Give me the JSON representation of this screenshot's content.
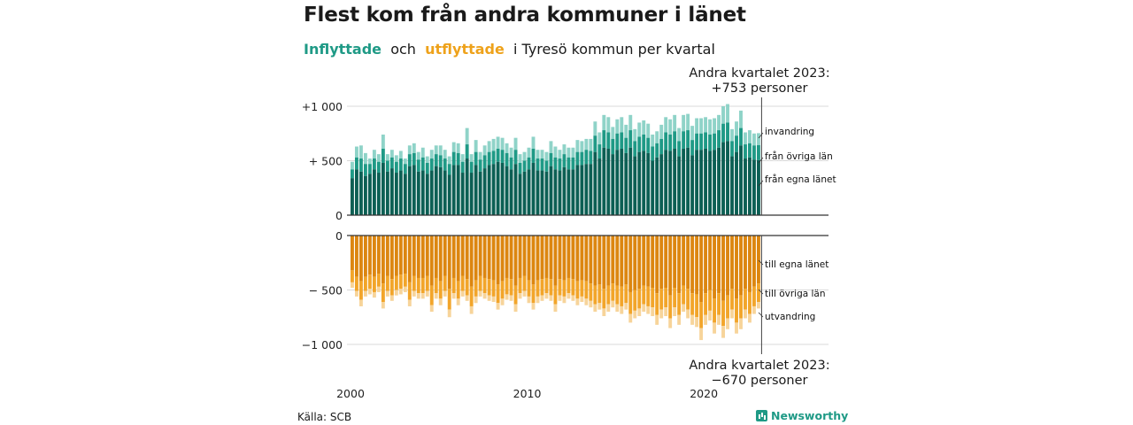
{
  "title": "Flest kom från andra kommuner i länet",
  "subtitle": {
    "inflyttade": "Inflyttade",
    "och": "och",
    "utflyttade": "utflyttade",
    "rest": "i Tyresö kommun per kvartal"
  },
  "callouts": {
    "top": [
      "Andra kvartalet 2023:",
      "+753 personer"
    ],
    "bottom": [
      "Andra kvartalet 2023:",
      "−670 personer"
    ]
  },
  "source": "Källa: SCB",
  "brand": "Newsworthy",
  "colors": {
    "in_county": "#0c5f54",
    "in_other": "#1f9a86",
    "in_immig": "#8fd3c8",
    "out_county": "#dc8610",
    "out_other": "#f2a52a",
    "out_emig": "#f7d49a",
    "grid": "#d9d9d9",
    "axis": "#333333",
    "inflyttade_text": "#1f9a86",
    "utflyttade_text": "#eea21b"
  },
  "chart_data": {
    "type": "bar",
    "stacked": true,
    "quarters_start": "2000 Q1",
    "quarters_end": "2023 Q2",
    "x_tick_labels": [
      "2000",
      "2010",
      "2020"
    ],
    "y_tick_labels_top": [
      "+1 000",
      "+ 500",
      "0"
    ],
    "y_tick_labels_bottom": [
      "0",
      "− 500",
      "−1 000"
    ],
    "ylim_top": [
      0,
      1000
    ],
    "ylim_bottom": [
      -1000,
      0
    ],
    "grid": true,
    "inflow_series_labels": [
      "invandring",
      "från övriga län",
      "från egna länet"
    ],
    "outflow_series_labels": [
      "till egna länet",
      "till övriga län",
      "utvandring"
    ],
    "inflow_total": [
      490,
      630,
      640,
      570,
      520,
      600,
      560,
      740,
      560,
      600,
      550,
      590,
      520,
      640,
      660,
      580,
      620,
      540,
      600,
      640,
      640,
      600,
      540,
      670,
      660,
      560,
      800,
      560,
      690,
      580,
      640,
      680,
      700,
      720,
      710,
      660,
      620,
      710,
      560,
      580,
      620,
      720,
      600,
      600,
      580,
      680,
      630,
      600,
      650,
      620,
      620,
      690,
      680,
      700,
      700,
      860,
      760,
      920,
      900,
      810,
      880,
      900,
      830,
      920,
      790,
      850,
      870,
      840,
      740,
      770,
      830,
      900,
      880,
      920,
      800,
      920,
      930,
      820,
      890,
      890,
      900,
      880,
      890,
      920,
      1000,
      1020,
      790,
      860,
      960,
      760,
      780,
      750,
      753
    ],
    "inflow_county": [
      340,
      420,
      400,
      360,
      380,
      420,
      390,
      480,
      400,
      430,
      390,
      410,
      380,
      450,
      460,
      400,
      410,
      380,
      410,
      450,
      440,
      410,
      370,
      460,
      460,
      390,
      520,
      390,
      460,
      400,
      430,
      460,
      470,
      490,
      480,
      450,
      420,
      470,
      380,
      400,
      420,
      480,
      410,
      410,
      400,
      450,
      420,
      410,
      440,
      420,
      420,
      460,
      460,
      470,
      470,
      580,
      520,
      620,
      610,
      560,
      600,
      610,
      570,
      620,
      540,
      580,
      590,
      570,
      500,
      530,
      560,
      600,
      590,
      610,
      540,
      610,
      620,
      550,
      600,
      600,
      610,
      590,
      600,
      620,
      670,
      680,
      540,
      580,
      640,
      520,
      530,
      510,
      505
    ],
    "inflow_other": [
      80,
      110,
      120,
      110,
      90,
      100,
      100,
      130,
      100,
      100,
      100,
      110,
      90,
      110,
      110,
      110,
      120,
      100,
      110,
      110,
      110,
      110,
      100,
      120,
      110,
      100,
      130,
      100,
      120,
      110,
      120,
      120,
      120,
      120,
      120,
      120,
      110,
      130,
      100,
      100,
      110,
      130,
      110,
      110,
      100,
      120,
      110,
      110,
      120,
      110,
      110,
      120,
      120,
      130,
      120,
      150,
      130,
      160,
      150,
      140,
      150,
      150,
      140,
      160,
      140,
      140,
      150,
      140,
      130,
      130,
      140,
      160,
      150,
      160,
      140,
      160,
      160,
      140,
      150,
      150,
      150,
      150,
      150,
      160,
      170,
      170,
      140,
      150,
      160,
      130,
      130,
      130,
      138
    ],
    "outflow_total": [
      -480,
      -560,
      -650,
      -560,
      -540,
      -570,
      -520,
      -670,
      -560,
      -600,
      -550,
      -540,
      -520,
      -650,
      -560,
      -580,
      -580,
      -560,
      -700,
      -580,
      -640,
      -560,
      -750,
      -580,
      -640,
      -560,
      -600,
      -720,
      -620,
      -560,
      -580,
      -600,
      -610,
      -680,
      -640,
      -590,
      -600,
      -700,
      -580,
      -560,
      -620,
      -680,
      -620,
      -600,
      -580,
      -600,
      -700,
      -600,
      -620,
      -580,
      -600,
      -640,
      -610,
      -640,
      -660,
      -700,
      -680,
      -740,
      -700,
      -660,
      -700,
      -720,
      -680,
      -800,
      -760,
      -740,
      -700,
      -720,
      -740,
      -820,
      -760,
      -740,
      -850,
      -740,
      -820,
      -700,
      -760,
      -820,
      -840,
      -960,
      -820,
      -780,
      -900,
      -820,
      -940,
      -860,
      -760,
      -900,
      -860,
      -760,
      -800,
      -720,
      -670
    ],
    "outflow_county": [
      -320,
      -380,
      -420,
      -380,
      -360,
      -380,
      -350,
      -440,
      -370,
      -400,
      -370,
      -360,
      -350,
      -430,
      -370,
      -390,
      -390,
      -370,
      -460,
      -390,
      -420,
      -370,
      -490,
      -390,
      -420,
      -370,
      -400,
      -470,
      -410,
      -370,
      -390,
      -400,
      -410,
      -450,
      -420,
      -390,
      -400,
      -460,
      -390,
      -370,
      -410,
      -450,
      -410,
      -400,
      -390,
      -400,
      -460,
      -400,
      -410,
      -390,
      -400,
      -420,
      -410,
      -420,
      -440,
      -460,
      -450,
      -490,
      -460,
      -440,
      -460,
      -470,
      -450,
      -520,
      -500,
      -490,
      -460,
      -470,
      -480,
      -530,
      -490,
      -480,
      -550,
      -480,
      -530,
      -460,
      -490,
      -530,
      -540,
      -610,
      -530,
      -500,
      -580,
      -530,
      -600,
      -550,
      -490,
      -580,
      -550,
      -490,
      -520,
      -470,
      -440
    ],
    "outflow_other": [
      -110,
      -130,
      -170,
      -130,
      -130,
      -140,
      -120,
      -170,
      -140,
      -150,
      -130,
      -130,
      -120,
      -160,
      -140,
      -140,
      -140,
      -140,
      -180,
      -140,
      -160,
      -140,
      -190,
      -140,
      -160,
      -140,
      -150,
      -180,
      -150,
      -140,
      -140,
      -150,
      -150,
      -170,
      -160,
      -150,
      -150,
      -170,
      -140,
      -140,
      -150,
      -170,
      -150,
      -150,
      -140,
      -150,
      -170,
      -150,
      -150,
      -140,
      -150,
      -160,
      -150,
      -160,
      -160,
      -170,
      -170,
      -180,
      -170,
      -160,
      -170,
      -180,
      -170,
      -200,
      -190,
      -180,
      -170,
      -180,
      -180,
      -200,
      -190,
      -180,
      -210,
      -180,
      -200,
      -170,
      -190,
      -200,
      -210,
      -240,
      -200,
      -190,
      -220,
      -200,
      -230,
      -210,
      -190,
      -220,
      -210,
      -190,
      -200,
      -180,
      -170
    ]
  }
}
